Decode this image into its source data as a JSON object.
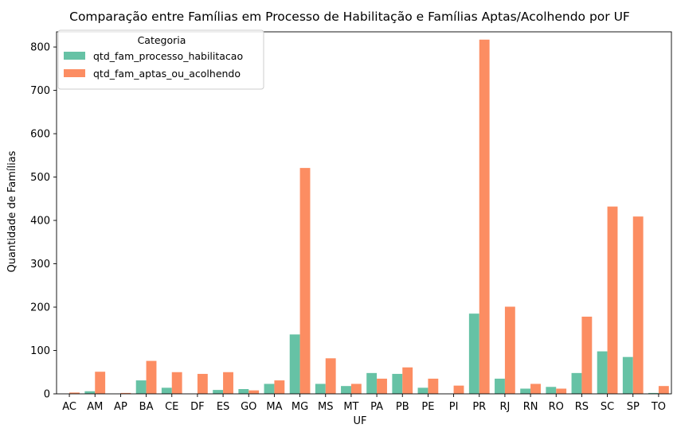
{
  "chart_data": {
    "type": "bar",
    "title": "Comparação entre Famílias em Processo de Habilitação e Famílias Aptas/Acolhendo por UF",
    "xlabel": "UF",
    "ylabel": "Quantidade de Famílias",
    "ylim": [
      0,
      835
    ],
    "yticks": [
      0,
      100,
      200,
      300,
      400,
      500,
      600,
      700,
      800
    ],
    "grid": false,
    "legend": {
      "title": "Categoria",
      "placement": "top-left"
    },
    "categories": [
      "AC",
      "AM",
      "AP",
      "BA",
      "CE",
      "DF",
      "ES",
      "GO",
      "MA",
      "MG",
      "MS",
      "MT",
      "PA",
      "PB",
      "PE",
      "PI",
      "PR",
      "RJ",
      "RN",
      "RO",
      "RS",
      "SC",
      "SP",
      "TO"
    ],
    "series": [
      {
        "name": "qtd_fam_processo_habilitacao",
        "color": "#66c2a5",
        "values": [
          0,
          6,
          0,
          31,
          14,
          0,
          9,
          11,
          23,
          137,
          23,
          18,
          48,
          46,
          14,
          0,
          185,
          35,
          12,
          16,
          48,
          98,
          85,
          2
        ]
      },
      {
        "name": "qtd_fam_aptas_ou_acolhendo",
        "color": "#fc8d62",
        "values": [
          3,
          51,
          2,
          76,
          50,
          46,
          50,
          8,
          31,
          521,
          82,
          23,
          35,
          61,
          35,
          19,
          817,
          201,
          23,
          12,
          178,
          432,
          409,
          18
        ]
      }
    ]
  }
}
